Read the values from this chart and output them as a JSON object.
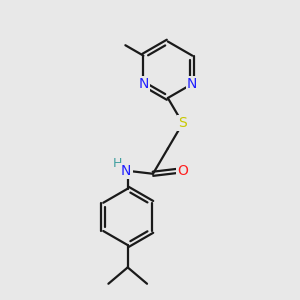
{
  "background_color": "#e8e8e8",
  "bond_color": "#1a1a1a",
  "N_color": "#2020ff",
  "S_color": "#c8c800",
  "O_color": "#ff2020",
  "H_color": "#40a0a0",
  "line_width": 1.6,
  "font_size": 10,
  "fig_width": 3.0,
  "fig_height": 3.0,
  "dpi": 100,
  "xlim": [
    0,
    10
  ],
  "ylim": [
    0,
    10
  ]
}
